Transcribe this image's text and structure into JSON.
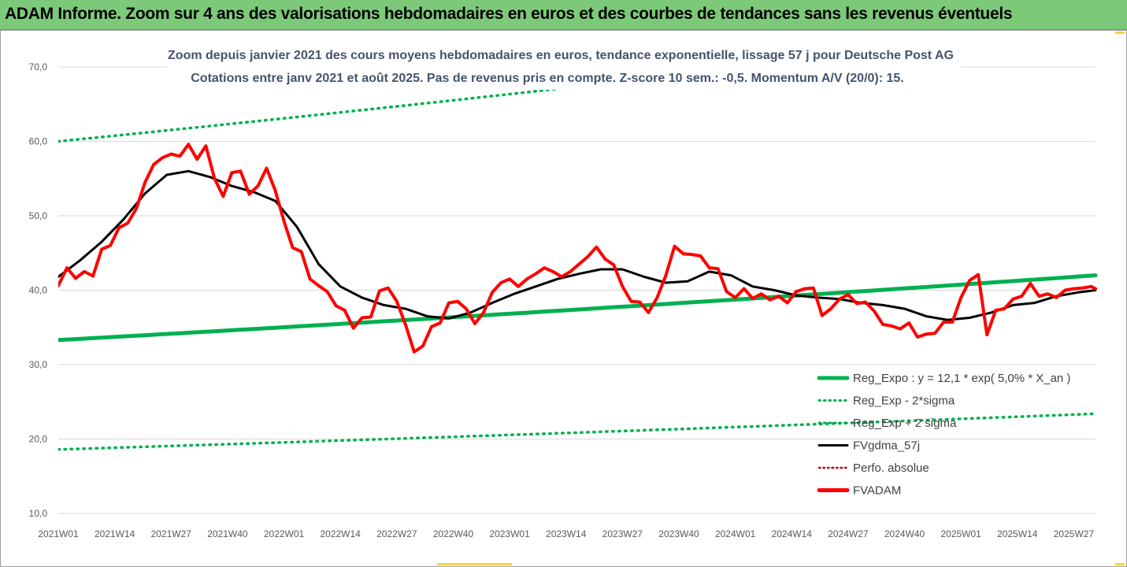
{
  "banner": {
    "title": "ADAM Informe. Zoom sur 4 ans des valorisations hebdomadaires en euros et des courbes de tendances sans les revenus éventuels"
  },
  "colors": {
    "banner_bg": "#7dc97a",
    "trend": "#00b050",
    "smooth": "#000000",
    "price": "#ff0000",
    "perf": "#c00000"
  },
  "chart_data": {
    "type": "line",
    "subtitle_line1": "Zoom depuis janvier 2021 des cours moyens hebdomadaires en euros, tendance exponentielle, lissage 57 j pour Deutsche Post AG",
    "subtitle_line2": "Cotations entre janv 2021 et août 2025.  Pas de revenus pris en compte. Z-score 10 sem.: -0,5. Momentum A/V (20/0): 15.",
    "ylim": [
      10,
      70
    ],
    "y_ticks": [
      "10,0",
      "20,0",
      "30,0",
      "40,0",
      "50,0",
      "60,0",
      "70,0"
    ],
    "y_tick_values": [
      10,
      20,
      30,
      40,
      50,
      60,
      70
    ],
    "x_ticks": [
      "2021W01",
      "2021W14",
      "2021W27",
      "2021W40",
      "2022W01",
      "2022W14",
      "2022W27",
      "2022W40",
      "2023W01",
      "2023W14",
      "2023W27",
      "2023W40",
      "2024W01",
      "2024W14",
      "2024W27",
      "2024W40",
      "2025W01",
      "2025W14",
      "2025W27"
    ],
    "x_tick_weeks": [
      0,
      13,
      26,
      39,
      52,
      65,
      78,
      91,
      104,
      117,
      130,
      143,
      156,
      169,
      182,
      195,
      208,
      221,
      234
    ],
    "x_range_weeks": [
      0,
      239
    ],
    "grid": "horizontal",
    "legend_position": "bottom-right",
    "legend": [
      {
        "label": "Reg_Expo : y = 12,1 * exp( 5,0% *  X_an )",
        "style": "solid-thick",
        "color": "#00b050"
      },
      {
        "label": "Reg_Exp - 2*sigma",
        "style": "dotted",
        "color": "#00b050"
      },
      {
        "label": "Reg_Exp + 2 sigma",
        "style": "dotted",
        "color": "#00b050"
      },
      {
        "label": "FVgdma_57j",
        "style": "solid",
        "color": "#000000"
      },
      {
        "label": "Perfo. absolue",
        "style": "dotted",
        "color": "#c00000"
      },
      {
        "label": "FVADAM",
        "style": "solid-thick",
        "color": "#ff0000"
      }
    ],
    "series": [
      {
        "name": "Reg_Expo : y = 12,1 * exp( 5,0% *  X_an )",
        "x": [
          0,
          239
        ],
        "values": [
          33.3,
          42.0
        ]
      },
      {
        "name": "Reg_Exp - 2*sigma",
        "x": [
          0,
          239
        ],
        "values": [
          18.6,
          23.4
        ]
      },
      {
        "name": "Reg_Exp + 2 sigma",
        "x": [
          0,
          239
        ],
        "values": [
          60.0,
          75.6
        ]
      },
      {
        "name": "FVgdma_57j",
        "x": [
          0,
          5,
          10,
          15,
          20,
          25,
          30,
          35,
          40,
          45,
          50,
          55,
          60,
          65,
          70,
          75,
          80,
          85,
          90,
          95,
          100,
          105,
          110,
          115,
          120,
          125,
          130,
          135,
          140,
          145,
          150,
          155,
          160,
          165,
          170,
          175,
          180,
          185,
          190,
          195,
          200,
          205,
          210,
          215,
          220,
          225,
          230,
          235,
          239
        ],
        "values": [
          41.8,
          44.0,
          46.5,
          49.5,
          53.0,
          55.5,
          56.0,
          55.2,
          54.0,
          53.2,
          52.0,
          48.5,
          43.5,
          40.5,
          39.0,
          38.0,
          37.5,
          36.5,
          36.2,
          37.0,
          38.3,
          39.5,
          40.5,
          41.5,
          42.2,
          42.8,
          42.8,
          41.8,
          41.0,
          41.2,
          42.5,
          42.0,
          40.5,
          40.0,
          39.3,
          39.0,
          38.8,
          38.3,
          38.0,
          37.5,
          36.5,
          36.0,
          36.3,
          37.0,
          38.0,
          38.3,
          39.2,
          39.7,
          40.0
        ]
      },
      {
        "name": "FVADAM",
        "x": [
          0,
          2,
          4,
          6,
          8,
          10,
          12,
          14,
          16,
          18,
          20,
          22,
          24,
          26,
          28,
          30,
          32,
          34,
          36,
          38,
          40,
          42,
          44,
          46,
          48,
          50,
          52,
          54,
          56,
          58,
          60,
          62,
          64,
          66,
          68,
          70,
          72,
          74,
          76,
          78,
          80,
          82,
          84,
          86,
          88,
          90,
          92,
          94,
          96,
          98,
          100,
          102,
          104,
          106,
          108,
          110,
          112,
          114,
          116,
          118,
          120,
          122,
          124,
          126,
          128,
          130,
          132,
          134,
          136,
          138,
          140,
          142,
          144,
          146,
          148,
          150,
          152,
          154,
          156,
          158,
          160,
          162,
          164,
          166,
          168,
          170,
          172,
          174,
          176,
          178,
          180,
          182,
          184,
          186,
          188,
          190,
          192,
          194,
          196,
          198,
          200,
          202,
          204,
          206,
          208,
          210,
          212,
          214,
          216,
          218,
          220,
          222,
          224,
          226,
          228,
          230,
          232,
          234,
          236,
          238,
          239
        ],
        "values": [
          40.6,
          43.0,
          41.6,
          42.5,
          41.9,
          45.5,
          46.0,
          48.4,
          49.0,
          51.0,
          54.5,
          56.9,
          57.8,
          58.3,
          58.0,
          59.6,
          57.6,
          59.4,
          55.0,
          52.6,
          55.8,
          56.0,
          52.9,
          54.0,
          56.4,
          53.4,
          49.3,
          45.7,
          45.2,
          41.5,
          40.6,
          39.8,
          37.9,
          37.3,
          34.9,
          36.3,
          36.4,
          39.9,
          40.3,
          38.5,
          35.4,
          31.7,
          32.5,
          35.1,
          35.6,
          38.3,
          38.5,
          37.5,
          35.5,
          37.0,
          39.7,
          41.0,
          41.5,
          40.5,
          41.5,
          42.2,
          43.0,
          42.5,
          41.8,
          42.5,
          43.5,
          44.5,
          45.8,
          44.2,
          43.4,
          40.5,
          38.5,
          38.4,
          37.0,
          39.0,
          42.0,
          45.9,
          44.9,
          44.8,
          44.6,
          43.0,
          42.9,
          39.8,
          39.0,
          40.2,
          38.9,
          39.5,
          38.7,
          39.2,
          38.3,
          39.8,
          40.2,
          40.3,
          36.6,
          37.5,
          38.8,
          39.4,
          38.2,
          38.4,
          37.2,
          35.4,
          35.2,
          34.8,
          35.6,
          33.7,
          34.1,
          34.2,
          35.7,
          35.7,
          39.0,
          41.3,
          42.1,
          34.0,
          37.3,
          37.5,
          38.8,
          39.2,
          40.9,
          39.2,
          39.5,
          39.0,
          40.0,
          40.2,
          40.3,
          40.5,
          40.2
        ]
      }
    ]
  }
}
